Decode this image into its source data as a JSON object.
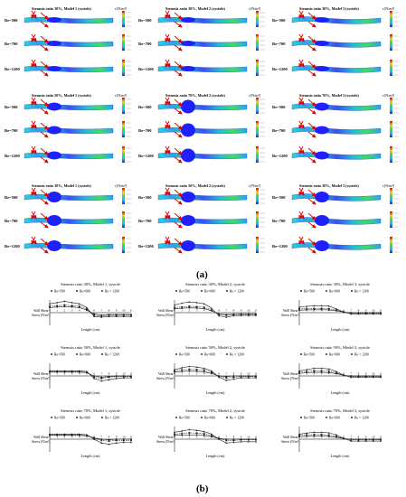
{
  "captions": {
    "a": "(a)",
    "b": "(b)"
  },
  "colorbar_unit": "τ[N/m²]",
  "reynolds_labels": [
    "Re=500",
    "Re=700",
    "Re=1200"
  ],
  "panel_a": {
    "grid": [
      [
        "Stenosis ratio 30%, Model 1 (systole)",
        "Stenosis ratio 30%, Model 2 (systole)",
        "Stenosis ratio 30%, Model 3 (systole)"
      ],
      [
        "Stenosis ratio 50%, Model 1 (systole)",
        "Stenosis ratio 70%, Model 2 (systole)",
        "Stenosis ratio 70%, Model 3 (systole)"
      ],
      [
        "Stenosis ratio 30%, Model 1 (systole)",
        "Stenosis ratio 50%, Model 2 (systole)",
        "Stenosis ratio 30%, Model 3 (systole)"
      ]
    ]
  },
  "panel_b": {
    "legend": [
      "Re=500",
      "Re=600",
      "Re = 1200"
    ],
    "xlabel": "Length (cm)",
    "ylabel_line1": "Wall Shear",
    "ylabel_line2": "Stress (N/m²)",
    "xticks": [
      "0",
      "1",
      "2",
      "3",
      "4",
      "5",
      "6",
      "7",
      "8",
      "9",
      "10",
      "11"
    ],
    "plots": [
      {
        "title": "Stenosis ratio 30%, Model 1, systole"
      },
      {
        "title": "Stenosis ratio 30%, Model 2, systole"
      },
      {
        "title": "Stenosis ratio 30%, Model 3, systole"
      },
      {
        "title": "Stenosis ratio 50%, Model 1, systole"
      },
      {
        "title": "Stenosis ratio 50%, Model 2, systole"
      },
      {
        "title": "Stenosis ratio 50%, Model 3, systole"
      },
      {
        "title": "Stenosis ratio 70%, Model 1, systole"
      },
      {
        "title": "Stenosis ratio 70%, Model 2, systole"
      },
      {
        "title": "Stenosis ratio 70%, Model 3, systole"
      }
    ]
  },
  "chart_data": [
    {
      "type": "line",
      "title": "Stenosis ratio 30%, Model 1, systole",
      "xlabel": "Length (cm)",
      "ylabel": "Wall Shear Stress (N/m²)",
      "x": [
        0,
        1,
        2,
        3,
        4,
        5,
        6,
        7,
        8,
        9,
        10,
        11
      ],
      "series": [
        {
          "name": "Re=500",
          "values": [
            4,
            4.5,
            4.8,
            4.5,
            4,
            2,
            -1,
            -2,
            -1.5,
            -1.5,
            -1.5,
            -1.5
          ]
        },
        {
          "name": "Re=600",
          "values": [
            5,
            5.5,
            6,
            5.5,
            5,
            3,
            -2,
            -2.5,
            -2,
            -2,
            -2,
            -2
          ]
        },
        {
          "name": "Re = 1200",
          "values": [
            7,
            8,
            9,
            8,
            7,
            4,
            -3,
            -3.5,
            -3,
            -3,
            -3,
            -3
          ]
        }
      ]
    },
    {
      "type": "line",
      "title": "Stenosis ratio 30%, Model 2, systole",
      "xlabel": "Length (cm)",
      "ylabel": "Wall Shear Stress (N/m²)",
      "x": [
        0,
        1,
        2,
        3,
        4,
        5,
        6,
        7,
        8,
        9,
        10,
        11
      ],
      "series": [
        {
          "name": "Re=500",
          "values": [
            3,
            3.5,
            3.8,
            3.6,
            3.2,
            1.5,
            -1,
            -1.5,
            -1.2,
            -1,
            -1,
            -1
          ]
        },
        {
          "name": "Re=600",
          "values": [
            4,
            4.5,
            5,
            4.7,
            4.2,
            2,
            -1.5,
            -2,
            -1.6,
            -1.4,
            -1.4,
            -1.4
          ]
        },
        {
          "name": "Re = 1200",
          "values": [
            6,
            7.5,
            8.5,
            8,
            7,
            3.5,
            -2.5,
            -3.5,
            -2.5,
            -2.2,
            -2.2,
            -2.2
          ]
        }
      ]
    },
    {
      "type": "line",
      "title": "Stenosis ratio 30%, Model 3, systole",
      "xlabel": "Length (cm)",
      "ylabel": "Wall Shear Stress (N/m²)",
      "x": [
        0,
        1,
        2,
        3,
        4,
        5,
        6,
        7,
        8,
        9,
        10,
        11
      ],
      "series": [
        {
          "name": "Re=500",
          "values": [
            2,
            2.2,
            2.3,
            2.3,
            2.2,
            1.5,
            0.5,
            0,
            0,
            0,
            0,
            0
          ]
        },
        {
          "name": "Re=600",
          "values": [
            3,
            3.2,
            3.3,
            3.3,
            3.1,
            2,
            0.5,
            -0.5,
            -0.5,
            -0.5,
            -0.5,
            -0.5
          ]
        },
        {
          "name": "Re = 1200",
          "values": [
            4.5,
            5,
            5.5,
            5.5,
            5.2,
            3,
            0.5,
            -1,
            -1,
            -1,
            -1,
            -1
          ]
        }
      ]
    },
    {
      "type": "line",
      "title": "Stenosis ratio 50%, Model 1, systole",
      "xlabel": "Length (cm)",
      "ylabel": "Wall Shear Stress (N/m²)",
      "x": [
        0,
        1,
        2,
        3,
        4,
        5,
        6,
        7,
        8,
        9,
        10,
        11
      ],
      "series": [
        {
          "name": "Re=500",
          "values": [
            3,
            3,
            3,
            3,
            3,
            2.5,
            0,
            -1,
            -0.5,
            0,
            0,
            0
          ]
        },
        {
          "name": "Re=600",
          "values": [
            3.5,
            3.5,
            3.5,
            3.5,
            3.5,
            3,
            -1,
            -2,
            -1,
            -0.5,
            -0.5,
            -0.5
          ]
        },
        {
          "name": "Re = 1200",
          "values": [
            4,
            4,
            4,
            4,
            4,
            3.5,
            -2,
            -4,
            -3,
            -2,
            -1.5,
            -1.5
          ]
        }
      ]
    },
    {
      "type": "line",
      "title": "Stenosis ratio 50%, Model 2, systole",
      "xlabel": "Length (cm)",
      "ylabel": "Wall Shear Stress (N/m²)",
      "x": [
        0,
        1,
        2,
        3,
        4,
        5,
        6,
        7,
        8,
        9,
        10,
        11
      ],
      "series": [
        {
          "name": "Re=500",
          "values": [
            3,
            3.5,
            3.8,
            3.6,
            3.2,
            2,
            0,
            -0.5,
            0,
            0,
            0,
            0
          ]
        },
        {
          "name": "Re=600",
          "values": [
            4,
            4.8,
            5.2,
            5,
            4.5,
            3,
            -0.5,
            -1.5,
            -1,
            -0.5,
            -0.5,
            -0.5
          ]
        },
        {
          "name": "Re = 1200",
          "values": [
            5,
            6.5,
            7.5,
            7,
            6,
            4,
            -1,
            -3.5,
            -2.5,
            -1.5,
            -1.5,
            -1.5
          ]
        }
      ]
    },
    {
      "type": "line",
      "title": "Stenosis ratio 50%, Model 3, systole",
      "xlabel": "Length (cm)",
      "ylabel": "Wall Shear Stress (N/m²)",
      "x": [
        0,
        1,
        2,
        3,
        4,
        5,
        6,
        7,
        8,
        9,
        10,
        11
      ],
      "series": [
        {
          "name": "Re=500",
          "values": [
            2,
            2.5,
            2.8,
            2.8,
            2.6,
            1.8,
            0.5,
            0,
            0,
            0,
            0,
            0
          ]
        },
        {
          "name": "Re=600",
          "values": [
            3,
            3.5,
            4,
            4,
            3.7,
            2.5,
            0.5,
            -0.5,
            -0.5,
            -0.5,
            -0.5,
            -0.5
          ]
        },
        {
          "name": "Re = 1200",
          "values": [
            4,
            5,
            6,
            6,
            5.5,
            3.5,
            0.5,
            -1,
            -1,
            -1,
            -1,
            -1
          ]
        }
      ]
    },
    {
      "type": "line",
      "title": "Stenosis ratio 70%, Model 1, systole",
      "xlabel": "Length (cm)",
      "ylabel": "Wall Shear Stress (N/m²)",
      "x": [
        0,
        1,
        2,
        3,
        4,
        5,
        6,
        7,
        8,
        9,
        10,
        11
      ],
      "series": [
        {
          "name": "Re=500",
          "values": [
            3,
            3,
            3,
            3,
            3,
            2.5,
            1,
            0,
            -0.5,
            0,
            0,
            0
          ]
        },
        {
          "name": "Re=600",
          "values": [
            3.5,
            3.5,
            3.5,
            3.5,
            3.5,
            3,
            1,
            -1,
            -1.5,
            -1,
            -1,
            -1
          ]
        },
        {
          "name": "Re = 1200",
          "values": [
            4,
            4,
            4,
            4,
            4,
            3.5,
            0,
            -3,
            -4,
            -3,
            -2.5,
            -2.5
          ]
        }
      ]
    },
    {
      "type": "line",
      "title": "Stenosis ratio 70%, Model 2, systole",
      "xlabel": "Length (cm)",
      "ylabel": "Wall Shear Stress (N/m²)",
      "x": [
        0,
        1,
        2,
        3,
        4,
        5,
        6,
        7,
        8,
        9,
        10,
        11
      ],
      "series": [
        {
          "name": "Re=500",
          "values": [
            3,
            3.2,
            3.4,
            3.3,
            3,
            2,
            0.5,
            0,
            0,
            0,
            0,
            0
          ]
        },
        {
          "name": "Re=600",
          "values": [
            4,
            4.5,
            5,
            4.8,
            4.3,
            3,
            0.5,
            -1,
            -1,
            -0.5,
            -0.5,
            -0.5
          ]
        },
        {
          "name": "Re = 1200",
          "values": [
            5.5,
            6.5,
            7.5,
            7,
            6,
            4,
            0,
            -3,
            -2.5,
            -2,
            -2,
            -2
          ]
        }
      ]
    },
    {
      "type": "line",
      "title": "Stenosis ratio 70%, Model 3, systole",
      "xlabel": "Length (cm)",
      "ylabel": "Wall Shear Stress (N/m²)",
      "x": [
        0,
        1,
        2,
        3,
        4,
        5,
        6,
        7,
        8,
        9,
        10,
        11
      ],
      "series": [
        {
          "name": "Re=500",
          "values": [
            2,
            2.2,
            2.4,
            2.4,
            2.2,
            1.5,
            0.5,
            0,
            0,
            0,
            0,
            0
          ]
        },
        {
          "name": "Re=600",
          "values": [
            3,
            3.3,
            3.6,
            3.6,
            3.3,
            2.3,
            0.5,
            -0.5,
            -0.5,
            -0.5,
            -0.5,
            -0.5
          ]
        },
        {
          "name": "Re = 1200",
          "values": [
            4,
            4.8,
            5.5,
            5.5,
            5,
            3.5,
            0.5,
            -1.5,
            -1.5,
            -1.5,
            -1.5,
            -1.5
          ]
        }
      ]
    }
  ]
}
